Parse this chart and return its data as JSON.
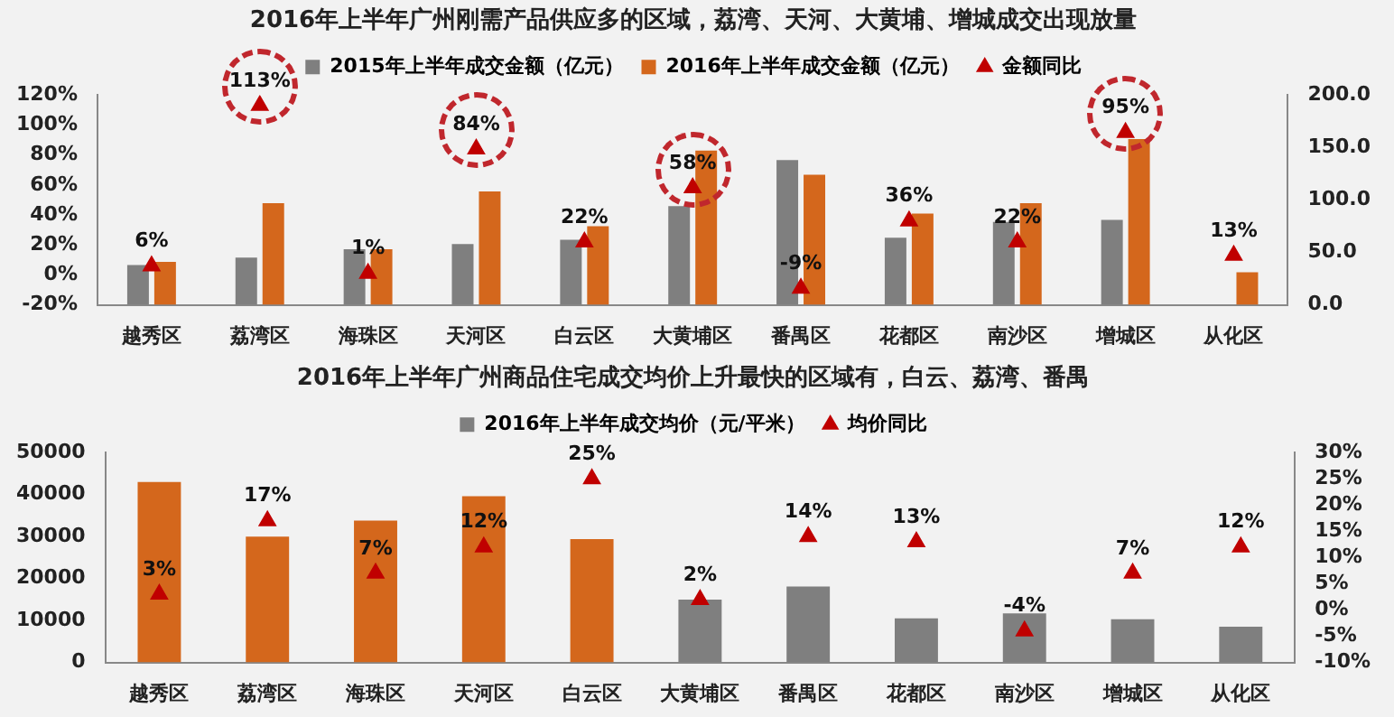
{
  "chart_data": [
    {
      "type": "bar",
      "title": "2016年上半年广州刚需产品供应多的区域，荔湾、天河、大黄埔、增城成交出现放量",
      "categories": [
        "越秀区",
        "荔湾区",
        "海珠区",
        "天河区",
        "白云区",
        "大黄埔区",
        "番禺区",
        "花都区",
        "南沙区",
        "增城区",
        "从化区"
      ],
      "series": [
        {
          "name": "2015年上半年成交金额（亿元）",
          "color": "#7f7f7f",
          "axis": "y2",
          "values": [
            38,
            45,
            53,
            58,
            62,
            94,
            138,
            64,
            79,
            81,
            null
          ]
        },
        {
          "name": "2016年上半年成交金额（亿元）",
          "color": "#d4671c",
          "axis": "y2",
          "values": [
            41,
            97,
            53,
            108,
            75,
            147,
            124,
            87,
            97,
            158,
            31
          ]
        },
        {
          "name": "金额同比",
          "type": "scatter",
          "color": "#c00000",
          "marker": "triangle",
          "x": [
            "越秀区",
            "荔湾区",
            "海珠区",
            "天河区",
            "白云区",
            "大黄埔区",
            "番禺区",
            "花都区",
            "南沙区",
            "增城区",
            "从化区"
          ],
          "values": [
            6,
            113,
            1,
            84,
            22,
            58,
            -9,
            36,
            22,
            95,
            13
          ],
          "value_labels": [
            "6%",
            "113%",
            "1%",
            "84%",
            "22%",
            "58%",
            "-9%",
            "36%",
            "22%",
            "95%",
            "13%"
          ]
        }
      ],
      "ylim": [
        -20,
        120
      ],
      "yticks": [
        {
          "value": -20,
          "label": "-20%"
        },
        {
          "value": 0,
          "label": "0%"
        },
        {
          "value": 20,
          "label": "20%"
        },
        {
          "value": 40,
          "label": "40%"
        },
        {
          "value": 60,
          "label": "60%"
        },
        {
          "value": 80,
          "label": "80%"
        },
        {
          "value": 100,
          "label": "100%"
        },
        {
          "value": 120,
          "label": "120%"
        }
      ],
      "y2lim": [
        0,
        200
      ],
      "y2ticks": [
        {
          "value": 0,
          "label": "0.0"
        },
        {
          "value": 50,
          "label": "50.0"
        },
        {
          "value": 100,
          "label": "100.0"
        },
        {
          "value": 150,
          "label": "150.0"
        },
        {
          "value": 200,
          "label": "200.0"
        }
      ],
      "grid": false,
      "legend": "top"
    },
    {
      "type": "bar",
      "title": "2016年上半年广州商品住宅成交均价上升最快的区域有，白云、荔湾、番禺",
      "categories": [
        "越秀区",
        "荔湾区",
        "海珠区",
        "天河区",
        "白云区",
        "大黄埔区",
        "番禺区",
        "花都区",
        "南沙区",
        "增城区",
        "从化区"
      ],
      "series": [
        {
          "name": "2016年上半年成交均价（元/平米）",
          "color": "#7f7f7f",
          "colors": [
            "#d4671c",
            "#d4671c",
            "#d4671c",
            "#d4671c",
            "#d4671c",
            "#7f7f7f",
            "#7f7f7f",
            "#7f7f7f",
            "#7f7f7f",
            "#7f7f7f",
            "#7f7f7f"
          ],
          "values": [
            43000,
            30000,
            33800,
            39600,
            29400,
            15000,
            18100,
            10500,
            11700,
            10300,
            8500
          ]
        },
        {
          "name": "均价同比",
          "type": "scatter",
          "axis": "y2",
          "color": "#c00000",
          "marker": "triangle",
          "x": [
            "越秀区",
            "荔湾区",
            "海珠区",
            "天河区",
            "白云区",
            "大黄埔区",
            "番禺区",
            "花都区",
            "南沙区",
            "增城区",
            "从化区"
          ],
          "values": [
            3,
            17,
            7,
            12,
            25,
            2,
            14,
            13,
            -4,
            7,
            12
          ],
          "value_labels": [
            "3%",
            "17%",
            "7%",
            "12%",
            "25%",
            "2%",
            "14%",
            "13%",
            "-4%",
            "7%",
            "12%"
          ]
        }
      ],
      "ylim": [
        0,
        50000
      ],
      "yticks": [
        0,
        10000,
        20000,
        30000,
        40000,
        50000
      ],
      "y2lim": [
        -10,
        30
      ],
      "y2ticks": [
        {
          "value": -10,
          "label": "-10%"
        },
        {
          "value": -5,
          "label": "-5%"
        },
        {
          "value": 0,
          "label": "0%"
        },
        {
          "value": 5,
          "label": "5%"
        },
        {
          "value": 10,
          "label": "10%"
        },
        {
          "value": 15,
          "label": "15%"
        },
        {
          "value": 20,
          "label": "20%"
        },
        {
          "value": 25,
          "label": "25%"
        },
        {
          "value": 30,
          "label": "30%"
        }
      ],
      "grid": false,
      "legend": "top"
    }
  ]
}
